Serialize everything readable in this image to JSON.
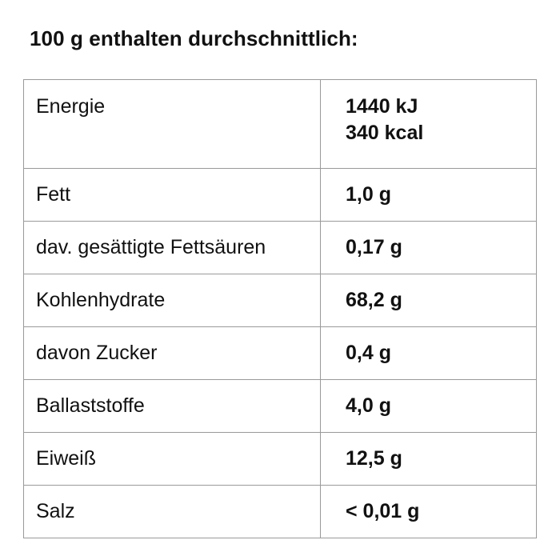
{
  "heading": "100 g enthalten durchschnittlich:",
  "energy": {
    "label": "Energie",
    "value_kj": "1440 kJ",
    "value_kcal": "340 kcal"
  },
  "rows": [
    {
      "label": "Fett",
      "value": "1,0 g"
    },
    {
      "label": "dav. gesättigte Fettsäuren",
      "value": "0,17 g"
    },
    {
      "label": "Kohlenhydrate",
      "value": "68,2 g"
    },
    {
      "label": "davon Zucker",
      "value": "0,4 g"
    },
    {
      "label": "Ballaststoffe",
      "value": "4,0 g"
    },
    {
      "label": "Eiweiß",
      "value": "12,5 g"
    },
    {
      "label": "Salz",
      "value": "< 0,01 g"
    }
  ]
}
